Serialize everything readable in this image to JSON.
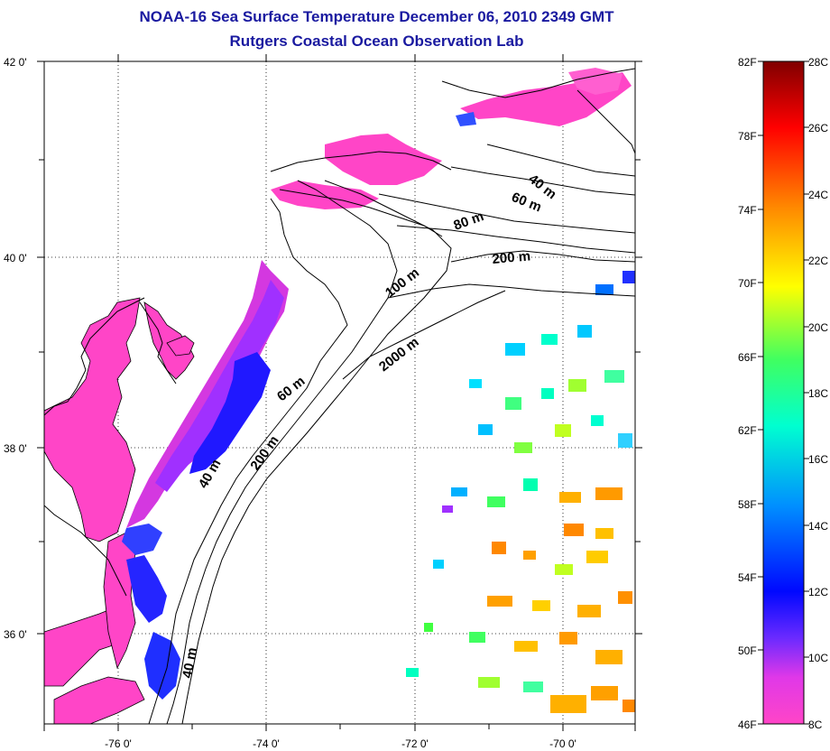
{
  "title": "NOAA-16 Sea Surface Temperature December 06, 2010 2349 GMT",
  "subtitle": "Rutgers Coastal Ocean Observation Lab",
  "map": {
    "lon_labels": [
      "-76 0'",
      "-74 0'",
      "-72 0'",
      "-70 0'"
    ],
    "lat_labels": [
      "42 0'",
      "40 0'",
      "38 0'",
      "36 0'"
    ],
    "contour_labels": [
      "40 m",
      "60 m",
      "80 m",
      "200 m",
      "100 m",
      "2000 m",
      "60 m",
      "40 m",
      "200 m",
      "40 m"
    ]
  },
  "colorbar": {
    "fahrenheit_labels": [
      "82F",
      "78F",
      "74F",
      "70F",
      "66F",
      "62F",
      "58F",
      "54F",
      "50F",
      "46F"
    ],
    "celsius_labels": [
      "28C",
      "26C",
      "24C",
      "22C",
      "20C",
      "18C",
      "16C",
      "14C",
      "12C",
      "10C",
      "8C"
    ],
    "colors": [
      "#ff45c7",
      "#a030ff",
      "#0008ff",
      "#0090ff",
      "#00ffd0",
      "#40ff40",
      "#ffff00",
      "#ff8800",
      "#ff0000",
      "#800000"
    ]
  },
  "colors": {
    "title": "#1a1aa0",
    "land_water_cold": "#ff45c7",
    "coast_lines": "#000000"
  }
}
